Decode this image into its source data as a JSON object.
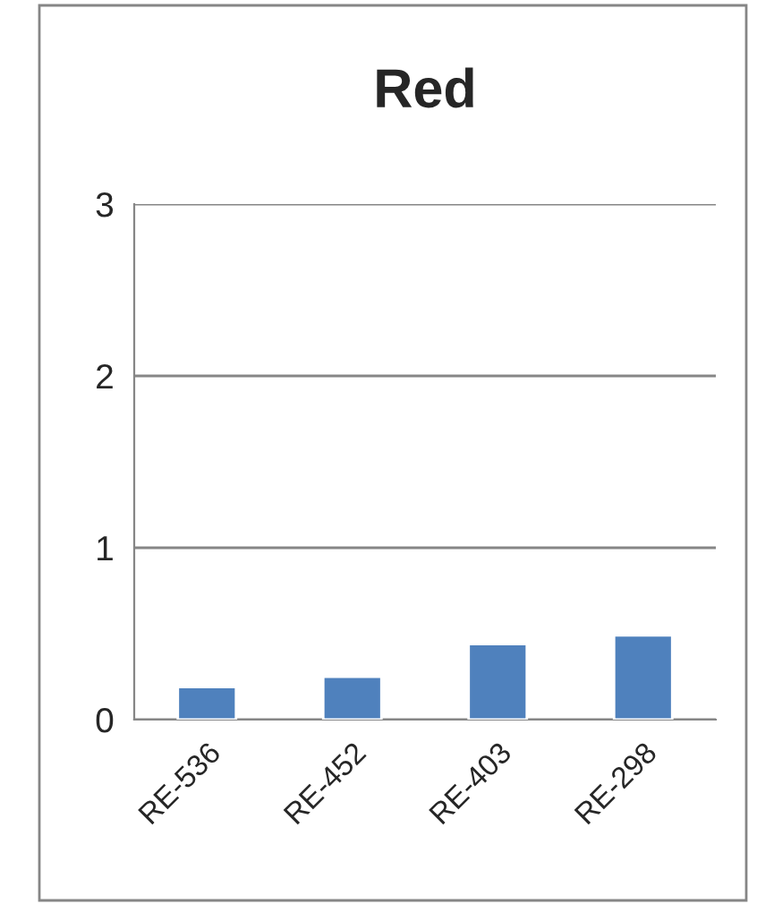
{
  "chart_data": {
    "type": "bar",
    "title": "Red",
    "categories": [
      "RE-536",
      "RE-452",
      "RE-403",
      "RE-298"
    ],
    "values": [
      0.19,
      0.25,
      0.44,
      0.49
    ],
    "color": "#4f81bd",
    "ylim": [
      0,
      3
    ],
    "yticks": [
      0,
      1,
      2,
      3
    ],
    "grid": "y",
    "legend": false
  }
}
